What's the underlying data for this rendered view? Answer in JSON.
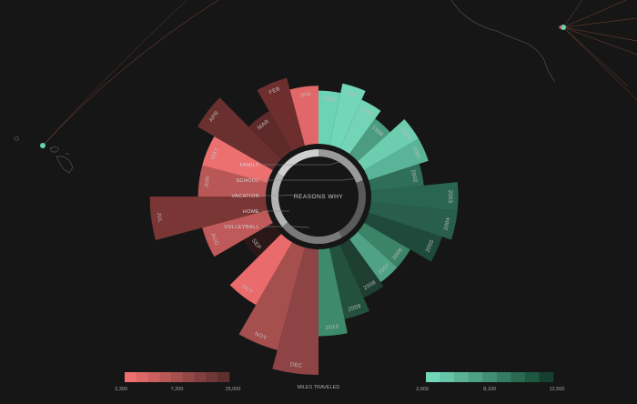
{
  "chart_data": {
    "type": "radial-bar",
    "center_label": "REASONS WHY",
    "reasons": [
      "FAMILY",
      "SCHOOL",
      "VACATION",
      "HOME",
      "VOLLEYBALL"
    ],
    "legend_caption": "MILES TRAVELED",
    "red_legend": {
      "ticks": [
        "2,300",
        "7,200",
        "25,000"
      ],
      "colors": [
        "#ef6f6f",
        "#dd6767",
        "#cb5f5f",
        "#b95757",
        "#a64f4f",
        "#944747",
        "#823f3f",
        "#703737",
        "#5e2f2f"
      ]
    },
    "green_legend": {
      "ticks": [
        "2,600",
        "8,100",
        "12,500"
      ],
      "colors": [
        "#72d6b8",
        "#66c4a7",
        "#5ab296",
        "#4ea085",
        "#428e74",
        "#367c63",
        "#2a6a52",
        "#1e5841",
        "#163f30"
      ]
    },
    "months": [
      {
        "label": "JAN",
        "value": 12000,
        "color": "#e06868"
      },
      {
        "label": "FEB",
        "value": 14500,
        "color": "#6e2e2e"
      },
      {
        "label": "MAR",
        "value": 9500,
        "color": "#5f2a2a"
      },
      {
        "label": "APR",
        "value": 18000,
        "color": "#6a3030"
      },
      {
        "label": "MAY",
        "value": 14000,
        "color": "#ec7070"
      },
      {
        "label": "JUN",
        "value": 14000,
        "color": "#b95757"
      },
      {
        "label": "JUL",
        "value": 24000,
        "color": "#7a3535"
      },
      {
        "label": "AUG",
        "value": 14000,
        "color": "#c05a5a"
      },
      {
        "label": "SEP",
        "value": 7000,
        "color": "#2a1818"
      },
      {
        "label": "OCT",
        "value": 15000,
        "color": "#ea6b6b"
      },
      {
        "label": "NOV",
        "value": 22000,
        "color": "#a64f4f"
      },
      {
        "label": "DEC",
        "value": 26000,
        "color": "#8e4444"
      }
    ],
    "years": [
      {
        "label": "1994",
        "value": 11000,
        "color": "#6dd3b5"
      },
      {
        "label": "1995",
        "value": 13000,
        "color": "#72d6b8"
      },
      {
        "label": "1997",
        "value": 11000,
        "color": "#74d4b6"
      },
      {
        "label": "1998",
        "value": 9000,
        "color": "#4b9c80"
      },
      {
        "label": "1999",
        "value": 13000,
        "color": "#6ccdaf"
      },
      {
        "label": "2001",
        "value": 13000,
        "color": "#5ab598"
      },
      {
        "label": "2002",
        "value": 11000,
        "color": "#2f6e58"
      },
      {
        "label": "2003",
        "value": 18000,
        "color": "#2a6551"
      },
      {
        "label": "2004",
        "value": 18000,
        "color": "#285e4b"
      },
      {
        "label": "2005",
        "value": 16000,
        "color": "#1f4a3b"
      },
      {
        "label": "2006",
        "value": 11000,
        "color": "#3c8468"
      },
      {
        "label": "2007",
        "value": 11000,
        "color": "#4fa286"
      },
      {
        "label": "2008",
        "value": 12000,
        "color": "#1d3e31"
      },
      {
        "label": "2009",
        "value": 15000,
        "color": "#24503f"
      },
      {
        "label": "2010",
        "value": 18000,
        "color": "#3d8a6c"
      }
    ]
  }
}
